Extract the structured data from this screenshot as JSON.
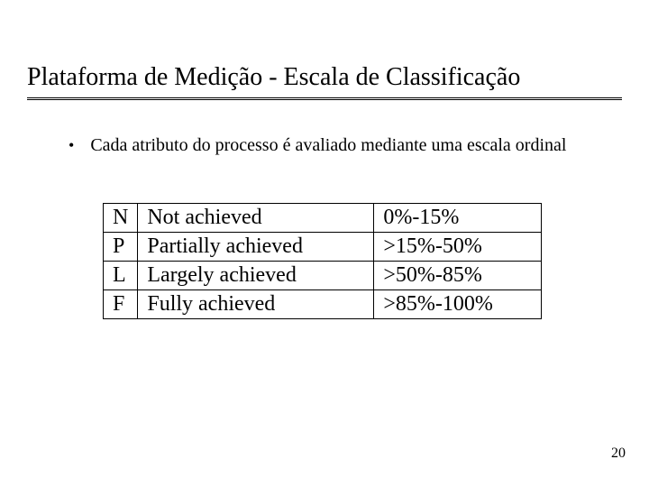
{
  "slide": {
    "title": "Plataforma de Medição - Escala de Classificação",
    "bullet": "Cada atributo do processo é avaliado mediante uma escala ordinal",
    "page_number": "20"
  },
  "rating_table": {
    "rows": [
      {
        "code": "N",
        "label": "Not achieved",
        "range": "0%-15%"
      },
      {
        "code": "P",
        "label": "Partially achieved",
        "range": ">15%-50%"
      },
      {
        "code": "L",
        "label": "Largely achieved",
        "range": ">50%-85%"
      },
      {
        "code": "F",
        "label": "Fully achieved",
        "range": ">85%-100%"
      }
    ]
  },
  "style": {
    "background_color": "#ffffff",
    "text_color": "#000000",
    "border_color": "#000000",
    "font_family": "Times New Roman",
    "title_fontsize": 28,
    "bullet_fontsize": 20,
    "table_fontsize": 24,
    "pagenum_fontsize": 16
  }
}
